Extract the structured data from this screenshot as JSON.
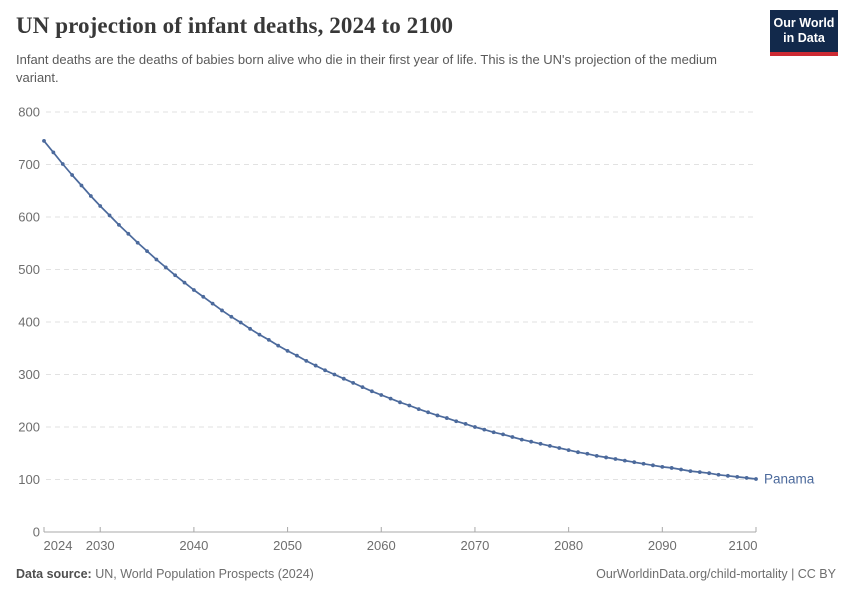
{
  "header": {
    "title": "UN projection of infant deaths, 2024 to 2100",
    "subtitle": "Infant deaths are the deaths of babies born alive who die in their first year of life. This is the UN's projection of the medium variant.",
    "logo": {
      "line1": "Our World",
      "line2": "in Data"
    }
  },
  "colors": {
    "line": "#4C6A9C",
    "grid": "#e2e2e2",
    "axis": "#a8a8a8",
    "tick_text": "#6e6e6e",
    "logo_bg": "#12294b",
    "logo_accent": "#cd2a33"
  },
  "chart_data": {
    "type": "line",
    "title": "UN projection of infant deaths, 2024 to 2100",
    "entity_label": "Panama",
    "xlabel": "",
    "ylabel": "",
    "xlim": [
      2024,
      2100
    ],
    "ylim": [
      0,
      800
    ],
    "x_ticks": [
      2024,
      2030,
      2040,
      2050,
      2060,
      2070,
      2080,
      2090,
      2100
    ],
    "y_ticks": [
      0,
      100,
      200,
      300,
      400,
      500,
      600,
      700,
      800
    ],
    "grid": "dashed-horizontal",
    "legend_position": "end-of-line-label",
    "x": [
      2024,
      2025,
      2026,
      2027,
      2028,
      2029,
      2030,
      2031,
      2032,
      2033,
      2034,
      2035,
      2036,
      2037,
      2038,
      2039,
      2040,
      2041,
      2042,
      2043,
      2044,
      2045,
      2046,
      2047,
      2048,
      2049,
      2050,
      2051,
      2052,
      2053,
      2054,
      2055,
      2056,
      2057,
      2058,
      2059,
      2060,
      2061,
      2062,
      2063,
      2064,
      2065,
      2066,
      2067,
      2068,
      2069,
      2070,
      2071,
      2072,
      2073,
      2074,
      2075,
      2076,
      2077,
      2078,
      2079,
      2080,
      2081,
      2082,
      2083,
      2084,
      2085,
      2086,
      2087,
      2088,
      2089,
      2090,
      2091,
      2092,
      2093,
      2094,
      2095,
      2096,
      2097,
      2098,
      2099,
      2100
    ],
    "series": [
      {
        "name": "Panama",
        "values": [
          745,
          723,
          701,
          680,
          660,
          640,
          621,
          603,
          585,
          568,
          551,
          535,
          519,
          504,
          489,
          475,
          461,
          448,
          435,
          422,
          410,
          399,
          387,
          376,
          366,
          355,
          345,
          336,
          326,
          317,
          308,
          300,
          292,
          284,
          276,
          268,
          261,
          254,
          247,
          241,
          234,
          228,
          222,
          217,
          211,
          206,
          200,
          195,
          190,
          186,
          181,
          176,
          172,
          168,
          164,
          160,
          156,
          152,
          149,
          145,
          142,
          139,
          136,
          133,
          130,
          127,
          124,
          122,
          119,
          116,
          114,
          112,
          109,
          107,
          105,
          103,
          101
        ]
      }
    ]
  },
  "footer": {
    "source_label": "Data source:",
    "source_text": " UN, World Population Prospects (2024)",
    "credit": "OurWorldinData.org/child-mortality | CC BY"
  }
}
